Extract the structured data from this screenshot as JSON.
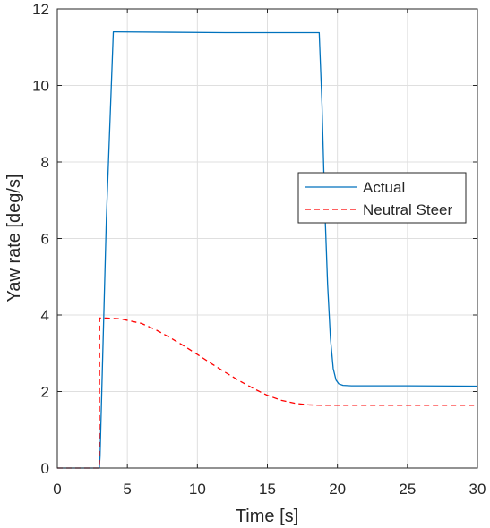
{
  "chart_data": {
    "type": "line",
    "title": "",
    "xlabel": "Time [s]",
    "ylabel": "Yaw rate [deg/s]",
    "xlim": [
      0,
      30
    ],
    "ylim": [
      0,
      12
    ],
    "xticks": [
      0,
      5,
      10,
      15,
      20,
      25,
      30
    ],
    "yticks": [
      0,
      2,
      4,
      6,
      8,
      10,
      12
    ],
    "xtick_labels": [
      "0",
      "5",
      "10",
      "15",
      "20",
      "25",
      "30"
    ],
    "ytick_labels": [
      "0",
      "2",
      "4",
      "6",
      "8",
      "10",
      "12"
    ],
    "grid": true,
    "legend_position": "right",
    "series": [
      {
        "name": "Actual",
        "color": "#0072BD",
        "style": "solid",
        "x": [
          0,
          3.0,
          3.05,
          3.5,
          4.0,
          4.1,
          8,
          12,
          16,
          18.7,
          18.9,
          19.1,
          19.3,
          19.5,
          19.7,
          19.9,
          20.1,
          20.4,
          21,
          25,
          30
        ],
        "y": [
          0,
          0,
          0.3,
          6.5,
          11.4,
          11.4,
          11.39,
          11.38,
          11.38,
          11.38,
          9.5,
          6.8,
          4.8,
          3.4,
          2.6,
          2.3,
          2.2,
          2.16,
          2.15,
          2.15,
          2.14
        ]
      },
      {
        "name": "Neutral Steer",
        "color": "#FF0000",
        "style": "dashed",
        "x": [
          0,
          3.0,
          3.02,
          3.5,
          4.5,
          6,
          7,
          8,
          9,
          10,
          11,
          12,
          13,
          14,
          15,
          16,
          17,
          18,
          19,
          20,
          22,
          25,
          30
        ],
        "y": [
          0,
          0,
          3.92,
          3.92,
          3.9,
          3.78,
          3.62,
          3.42,
          3.2,
          2.97,
          2.73,
          2.5,
          2.28,
          2.08,
          1.9,
          1.77,
          1.69,
          1.65,
          1.64,
          1.64,
          1.64,
          1.64,
          1.64
        ]
      }
    ]
  }
}
